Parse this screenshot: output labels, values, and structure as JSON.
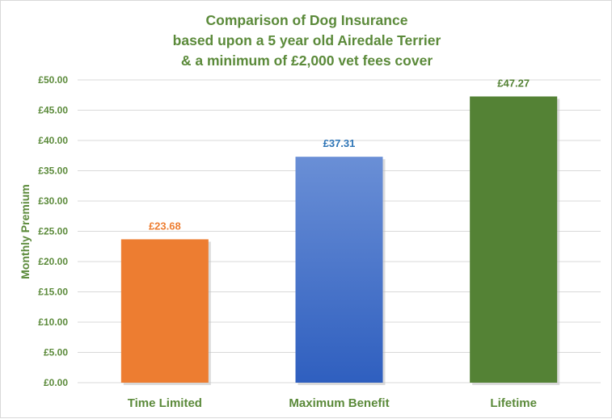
{
  "chart_data": {
    "type": "bar",
    "title_lines": [
      "Comparison  of Dog Insurance",
      "based upon a 5 year old Airedale Terrier",
      "& a minimum of £2,000 vet fees cover"
    ],
    "ylabel": "Monthly Premium",
    "xlabel": "",
    "categories": [
      "Time Limited",
      "Maximum Benefit",
      "Lifetime"
    ],
    "values": [
      23.68,
      37.31,
      47.27
    ],
    "value_labels": [
      "£23.68",
      "£37.31",
      "£47.27"
    ],
    "yticks": [
      "£0.00",
      "£5.00",
      "£10.00",
      "£15.00",
      "£20.00",
      "£25.00",
      "£30.00",
      "£35.00",
      "£40.00",
      "£45.00",
      "£50.00"
    ],
    "ylim": [
      0,
      50
    ],
    "grid": true,
    "legend": "none",
    "colors": {
      "title": "#5b8a3a",
      "axis_text": "#5b8a3a",
      "bars": [
        "#ed7d31",
        "#4472c4",
        "#548235"
      ],
      "bar_gradient_top": [
        "#ed7d31",
        "#6a8fd6",
        "#548235"
      ],
      "bar_gradient_bottom": [
        "#ed7d31",
        "#2f5fbf",
        "#548235"
      ],
      "label_colors": [
        "#ed7d31",
        "#2e75b6",
        "#548235"
      ],
      "gridline": "#d9d9d9"
    }
  }
}
